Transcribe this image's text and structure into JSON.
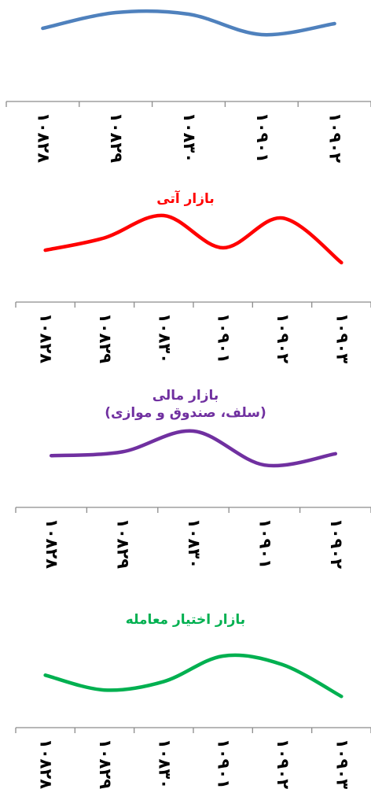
{
  "chart_data": [
    {
      "type": "line",
      "title": "",
      "categories": [
        "۱۰۸۲۸",
        "۱۰۸۲۹",
        "۱۰۸۳۰",
        "۱۰۹۰۱",
        "۱۰۹۰۲"
      ],
      "series": [
        {
          "values": [
            0.3,
            0.8,
            0.75,
            0.1,
            0.45
          ]
        }
      ],
      "ylim": [
        0,
        1
      ],
      "color": "#4F81BD",
      "grid": false,
      "xlabel": "",
      "ylabel": ""
    },
    {
      "type": "line",
      "title": "بازار آتی",
      "title_color": "#FF0000",
      "categories": [
        "۱۰۸۲۸",
        "۱۰۸۲۹",
        "۱۰۸۳۰",
        "۱۰۹۰۱",
        "۱۰۹۰۲",
        "۱۰۹۰۳"
      ],
      "series": [
        {
          "values": [
            0.3,
            0.55,
            1.0,
            0.35,
            0.95,
            0.05
          ]
        }
      ],
      "ylim": [
        0,
        1
      ],
      "color": "#FF0000",
      "grid": false,
      "xlabel": "",
      "ylabel": ""
    },
    {
      "type": "line",
      "title": "بازار مالی\n(سلف، صندوق و موازی)",
      "title_color": "#7030A0",
      "categories": [
        "۱۰۸۲۸",
        "۱۰۸۲۹",
        "۱۰۸۳۰",
        "۱۰۹۰۱",
        "۱۰۹۰۲"
      ],
      "series": [
        {
          "values": [
            0.35,
            0.45,
            1.0,
            0.1,
            0.4
          ]
        }
      ],
      "ylim": [
        0,
        1
      ],
      "color": "#7030A0",
      "grid": false,
      "xlabel": "",
      "ylabel": ""
    },
    {
      "type": "line",
      "title": "بازار اختیار معامله",
      "title_color": "#00B050",
      "categories": [
        "۱۰۸۲۸",
        "۱۰۸۲۹",
        "۱۰۸۳۰",
        "۱۰۹۰۱",
        "۱۰۹۰۲",
        "۱۰۹۰۳"
      ],
      "series": [
        {
          "values": [
            0.55,
            0.2,
            0.4,
            1.0,
            0.8,
            0.05
          ]
        }
      ],
      "ylim": [
        0,
        1
      ],
      "color": "#00B050",
      "grid": false,
      "xlabel": "",
      "ylabel": ""
    }
  ]
}
